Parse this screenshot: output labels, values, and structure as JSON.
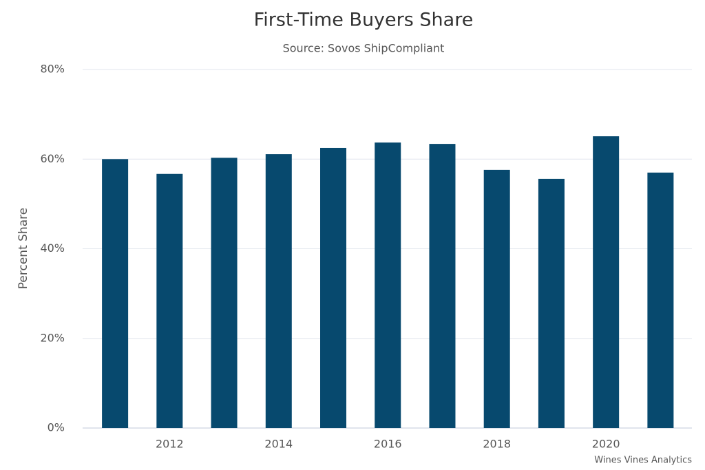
{
  "chart_data": {
    "type": "bar",
    "title": "First-Time Buyers Share",
    "subtitle": "Source: Sovos ShipCompliant",
    "y_label": "Percent Share",
    "credit": "Wines Vines Analytics",
    "categories": [
      null,
      "2012",
      null,
      "2014",
      null,
      "2016",
      null,
      "2018",
      null,
      "2020",
      null
    ],
    "values": [
      60,
      56.7,
      60.3,
      61.1,
      62.5,
      63.7,
      63.4,
      57.6,
      55.6,
      65.1,
      57.0
    ],
    "color": "#07496e",
    "ylim": [
      0,
      80
    ],
    "yticks": [
      {
        "value": 0,
        "label": "0%"
      },
      {
        "value": 20,
        "label": "20%"
      },
      {
        "value": 40,
        "label": "40%"
      },
      {
        "value": 60,
        "label": "60%"
      },
      {
        "value": 80,
        "label": "80%"
      }
    ],
    "grid": true
  }
}
